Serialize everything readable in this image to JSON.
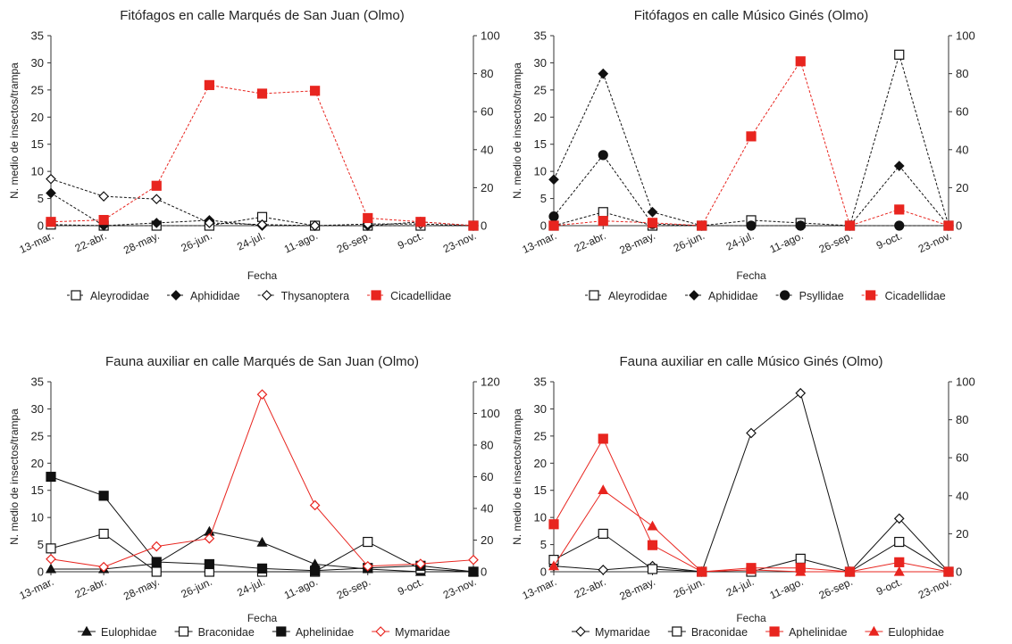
{
  "colors": {
    "black": "#111111",
    "red": "#e8251f",
    "axis": "#333333"
  },
  "chart_data": [
    {
      "type": "line",
      "title": "Fitófagos en calle Marqués de San Juan (Olmo)",
      "xlabel": "Fecha",
      "ylabel": "N. medio de insectos/trampa",
      "categories": [
        "13-mar.",
        "22-abr.",
        "28-may.",
        "26-jun.",
        "24-jul.",
        "11-ago.",
        "26-sep.",
        "9-oct.",
        "23-nov."
      ],
      "ylim": [
        0,
        35
      ],
      "yticks": [
        0,
        5,
        10,
        15,
        20,
        25,
        30,
        35
      ],
      "y2lim": [
        0,
        100
      ],
      "y2ticks": [
        0,
        20,
        40,
        60,
        80,
        100
      ],
      "grid": false,
      "legend_position": "bottom",
      "series": [
        {
          "name": "Aleyrodidae",
          "axis": "left",
          "marker": "square-open",
          "color": "#111111",
          "values": [
            0.2,
            0,
            0,
            0,
            1.6,
            0,
            0,
            0,
            0
          ]
        },
        {
          "name": "Aphididae",
          "axis": "left",
          "marker": "diamond-filled",
          "color": "#111111",
          "values": [
            6,
            0,
            0.5,
            1,
            0,
            0,
            0,
            0.7,
            0
          ]
        },
        {
          "name": "Thysanoptera",
          "axis": "left",
          "marker": "diamond-open",
          "color": "#111111",
          "values": [
            8.6,
            5.4,
            4.9,
            0.5,
            0.2,
            0,
            0.3,
            0.3,
            0
          ]
        },
        {
          "name": "Cicadellidae",
          "axis": "right",
          "marker": "square-filled",
          "color": "#e8251f",
          "values": [
            2,
            3,
            21,
            74,
            69.5,
            71,
            4,
            2,
            0
          ]
        }
      ]
    },
    {
      "type": "line",
      "title": "Fitófagos en calle Músico Ginés (Olmo)",
      "xlabel": "Fecha",
      "ylabel": "N. medio de insectos/trampa",
      "categories": [
        "13-mar.",
        "22-abr.",
        "28-may.",
        "26-jun.",
        "24-jul.",
        "11-ago.",
        "26-sep.",
        "9-oct.",
        "23-nov."
      ],
      "ylim": [
        0,
        35
      ],
      "yticks": [
        0,
        5,
        10,
        15,
        20,
        25,
        30,
        35
      ],
      "y2lim": [
        0,
        100
      ],
      "y2ticks": [
        0,
        20,
        40,
        60,
        80,
        100
      ],
      "grid": false,
      "legend_position": "bottom",
      "series": [
        {
          "name": "Aleyrodidae",
          "axis": "left",
          "marker": "square-open",
          "color": "#111111",
          "values": [
            0,
            2.5,
            0,
            0,
            1,
            0.5,
            0,
            31.5,
            0
          ]
        },
        {
          "name": "Aphididae",
          "axis": "left",
          "marker": "diamond-filled",
          "color": "#111111",
          "values": [
            8.5,
            28,
            2.5,
            0,
            0,
            0,
            0,
            11,
            0
          ]
        },
        {
          "name": "Psyllidae",
          "axis": "left",
          "marker": "circle-filled",
          "color": "#111111",
          "values": [
            1.7,
            13,
            0.3,
            0,
            0,
            0,
            0,
            0,
            0
          ]
        },
        {
          "name": "Cicadellidae",
          "axis": "right",
          "marker": "square-filled",
          "color": "#e8251f",
          "values": [
            0,
            2.5,
            1.5,
            0,
            47,
            86.5,
            0,
            8.5,
            0
          ]
        }
      ]
    },
    {
      "type": "line",
      "title": "Fauna auxiliar en calle Marqués de San Juan (Olmo)",
      "xlabel": "Fecha",
      "ylabel": "N. medio de insectos/trampa",
      "categories": [
        "13-mar.",
        "22-abr.",
        "28-may.",
        "26-jun.",
        "24-jul.",
        "11-ago.",
        "26-sep.",
        "9-oct.",
        "23-nov."
      ],
      "ylim": [
        0,
        35
      ],
      "yticks": [
        0,
        5,
        10,
        15,
        20,
        25,
        30,
        35
      ],
      "y2lim": [
        0,
        120
      ],
      "y2ticks": [
        0,
        20,
        40,
        60,
        80,
        100,
        120
      ],
      "grid": false,
      "legend_position": "bottom",
      "series": [
        {
          "name": "Eulophidae",
          "axis": "left",
          "marker": "triangle-filled",
          "color": "#111111",
          "values": [
            0.5,
            0.5,
            1.5,
            7.4,
            5.4,
            1.4,
            0.5,
            0,
            0
          ]
        },
        {
          "name": "Braconidae",
          "axis": "left",
          "marker": "square-open",
          "color": "#111111",
          "values": [
            4.3,
            7,
            0,
            0,
            0,
            0,
            5.5,
            0.5,
            0
          ]
        },
        {
          "name": "Aphelinidae",
          "axis": "left",
          "marker": "square-filled",
          "color": "#111111",
          "values": [
            17.5,
            14,
            1.8,
            1.4,
            0.6,
            0.2,
            0.7,
            1.1,
            0
          ]
        },
        {
          "name": "Mymaridae",
          "axis": "right",
          "marker": "diamond-open",
          "color": "#e8251f",
          "values": [
            8,
            3,
            16,
            21,
            112,
            42,
            3.5,
            5,
            7.5
          ]
        }
      ]
    },
    {
      "type": "line",
      "title": "Fauna auxiliar en calle Músico Ginés (Olmo)",
      "xlabel": "Fecha",
      "ylabel": "N. medio de insectos/trampa",
      "categories": [
        "13-mar.",
        "22-abr.",
        "28-may.",
        "26-jun.",
        "24-jul.",
        "11-ago.",
        "26-sep.",
        "9-oct.",
        "23-nov."
      ],
      "ylim": [
        0,
        35
      ],
      "yticks": [
        0,
        5,
        10,
        15,
        20,
        25,
        30,
        35
      ],
      "y2lim": [
        0,
        100
      ],
      "y2ticks": [
        0,
        20,
        40,
        60,
        80,
        100
      ],
      "grid": false,
      "legend_position": "bottom",
      "series": [
        {
          "name": "Mymaridae",
          "axis": "right",
          "marker": "diamond-open",
          "color": "#111111",
          "values": [
            3,
            1,
            3,
            0,
            73,
            94,
            0,
            28,
            0
          ]
        },
        {
          "name": "Braconidae",
          "axis": "left",
          "marker": "square-open",
          "color": "#111111",
          "values": [
            2.2,
            7,
            0.5,
            0,
            0,
            2.4,
            0,
            5.5,
            0
          ]
        },
        {
          "name": "Aphelinidae",
          "axis": "right",
          "marker": "square-filled",
          "color": "#e8251f",
          "values": [
            25,
            70,
            14,
            0,
            2,
            2,
            0,
            5,
            0
          ]
        },
        {
          "name": "Eulophidae",
          "axis": "right",
          "marker": "triangle-filled",
          "color": "#e8251f",
          "values": [
            3,
            43,
            24,
            0,
            1,
            0,
            0,
            0,
            0
          ]
        }
      ]
    }
  ]
}
